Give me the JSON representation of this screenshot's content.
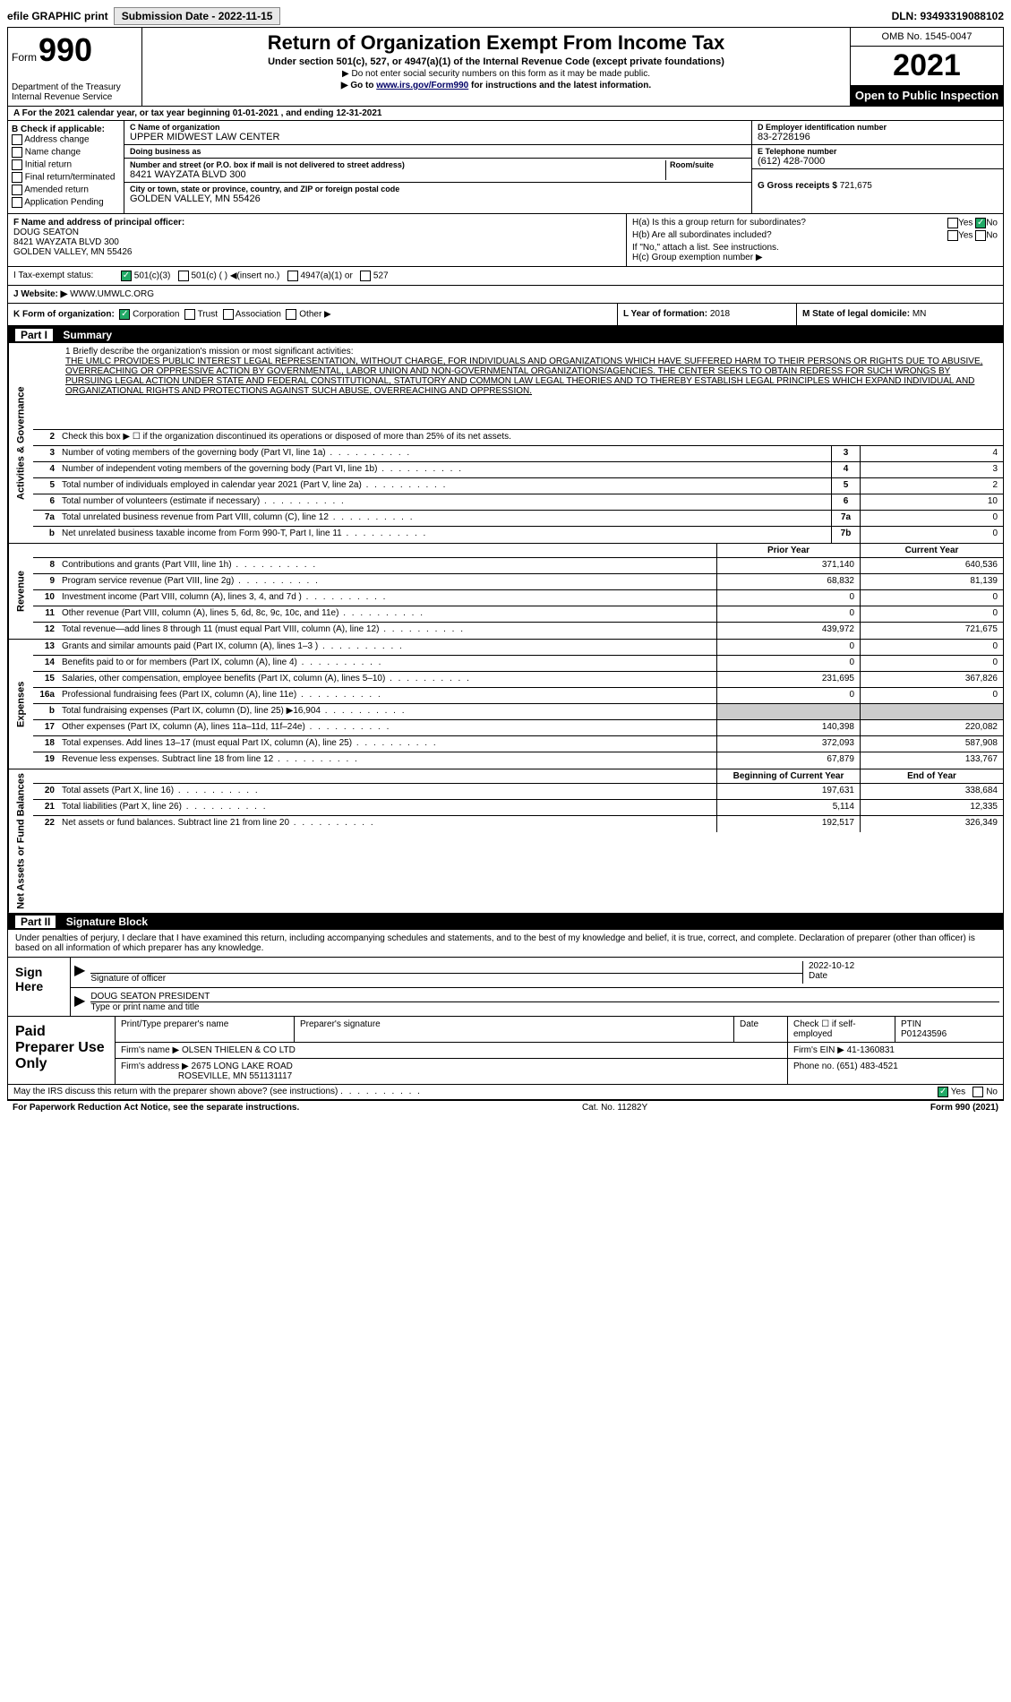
{
  "topbar": {
    "efile": "efile GRAPHIC print",
    "submission_label": "Submission Date - 2022-11-15",
    "dln_label": "DLN: 93493319088102"
  },
  "header": {
    "form_word": "Form",
    "form_number": "990",
    "dept": "Department of the Treasury Internal Revenue Service",
    "title": "Return of Organization Exempt From Income Tax",
    "subtitle": "Under section 501(c), 527, or 4947(a)(1) of the Internal Revenue Code (except private foundations)",
    "note1": "▶ Do not enter social security numbers on this form as it may be made public.",
    "note2_pre": "▶ Go to ",
    "note2_link": "www.irs.gov/Form990",
    "note2_post": " for instructions and the latest information.",
    "omb": "OMB No. 1545-0047",
    "year": "2021",
    "open_pub": "Open to Public Inspection"
  },
  "rowA": "A For the 2021 calendar year, or tax year beginning 01-01-2021   , and ending 12-31-2021",
  "sectionB": {
    "label": "B Check if applicable:",
    "items": [
      "Address change",
      "Name change",
      "Initial return",
      "Final return/terminated",
      "Amended return",
      "Application Pending"
    ]
  },
  "sectionC": {
    "name_lbl": "C Name of organization",
    "name": "UPPER MIDWEST LAW CENTER",
    "dba_lbl": "Doing business as",
    "dba": "",
    "addr_lbl": "Number and street (or P.O. box if mail is not delivered to street address)",
    "room_lbl": "Room/suite",
    "addr": "8421 WAYZATA BLVD 300",
    "city_lbl": "City or town, state or province, country, and ZIP or foreign postal code",
    "city": "GOLDEN VALLEY, MN  55426"
  },
  "sectionD": {
    "lbl": "D Employer identification number",
    "val": "83-2728196"
  },
  "sectionE": {
    "lbl": "E Telephone number",
    "val": "(612) 428-7000"
  },
  "sectionG": {
    "lbl": "G Gross receipts $",
    "val": "721,675"
  },
  "sectionF": {
    "lbl": "F Name and address of principal officer:",
    "name": "DOUG SEATON",
    "addr1": "8421 WAYZATA BLVD 300",
    "addr2": "GOLDEN VALLEY, MN  55426"
  },
  "sectionH": {
    "a_lbl": "H(a)  Is this a group return for subordinates?",
    "a_yes": "Yes",
    "a_no": "No",
    "b_lbl": "H(b)  Are all subordinates included?",
    "b_yes": "Yes",
    "b_no": "No",
    "b_note": "If \"No,\" attach a list. See instructions.",
    "c_lbl": "H(c)  Group exemption number ▶"
  },
  "sectionI": {
    "lbl": "I  Tax-exempt status:",
    "opts": [
      "501(c)(3)",
      "501(c) (  ) ◀(insert no.)",
      "4947(a)(1) or",
      "527"
    ]
  },
  "sectionJ": {
    "lbl": "J  Website: ▶",
    "val": "WWW.UMWLC.ORG"
  },
  "sectionK": {
    "lbl": "K Form of organization:",
    "opts": [
      "Corporation",
      "Trust",
      "Association",
      "Other ▶"
    ]
  },
  "sectionL": {
    "lbl": "L Year of formation:",
    "val": "2018"
  },
  "sectionM": {
    "lbl": "M State of legal domicile:",
    "val": "MN"
  },
  "part1": {
    "hdr": "Summary",
    "mission_lbl": "1   Briefly describe the organization's mission or most significant activities:",
    "mission": "THE UMLC PROVIDES PUBLIC INTEREST LEGAL REPRESENTATION, WITHOUT CHARGE, FOR INDIVIDUALS AND ORGANIZATIONS WHICH HAVE SUFFERED HARM TO THEIR PERSONS OR RIGHTS DUE TO ABUSIVE, OVERREACHING OR OPPRESSIVE ACTION BY GOVERNMENTAL, LABOR UNION AND NON-GOVERNMENTAL ORGANIZATIONS/AGENCIES. THE CENTER SEEKS TO OBTAIN REDRESS FOR SUCH WRONGS BY PURSUING LEGAL ACTION UNDER STATE AND FEDERAL CONSTITUTIONAL, STATUTORY AND COMMON LAW LEGAL THEORIES AND TO THEREBY ESTABLISH LEGAL PRINCIPLES WHICH EXPAND INDIVIDUAL AND ORGANIZATIONAL RIGHTS AND PROTECTIONS AGAINST SUCH ABUSE, OVERREACHING AND OPPRESSION.",
    "line2": "Check this box ▶ ☐ if the organization discontinued its operations or disposed of more than 25% of its net assets.",
    "side_gov": "Activities & Governance",
    "side_rev": "Revenue",
    "side_exp": "Expenses",
    "side_net": "Net Assets or Fund Balances",
    "prior_hdr": "Prior Year",
    "curr_hdr": "Current Year",
    "boy_hdr": "Beginning of Current Year",
    "eoy_hdr": "End of Year",
    "gov_lines": [
      {
        "n": "3",
        "d": "Number of voting members of the governing body (Part VI, line 1a)",
        "box": "3",
        "v": "4"
      },
      {
        "n": "4",
        "d": "Number of independent voting members of the governing body (Part VI, line 1b)",
        "box": "4",
        "v": "3"
      },
      {
        "n": "5",
        "d": "Total number of individuals employed in calendar year 2021 (Part V, line 2a)",
        "box": "5",
        "v": "2"
      },
      {
        "n": "6",
        "d": "Total number of volunteers (estimate if necessary)",
        "box": "6",
        "v": "10"
      },
      {
        "n": "7a",
        "d": "Total unrelated business revenue from Part VIII, column (C), line 12",
        "box": "7a",
        "v": "0"
      },
      {
        "n": "b",
        "d": "Net unrelated business taxable income from Form 990-T, Part I, line 11",
        "box": "7b",
        "v": "0"
      }
    ],
    "rev_lines": [
      {
        "n": "8",
        "d": "Contributions and grants (Part VIII, line 1h)",
        "p": "371,140",
        "c": "640,536"
      },
      {
        "n": "9",
        "d": "Program service revenue (Part VIII, line 2g)",
        "p": "68,832",
        "c": "81,139"
      },
      {
        "n": "10",
        "d": "Investment income (Part VIII, column (A), lines 3, 4, and 7d )",
        "p": "0",
        "c": "0"
      },
      {
        "n": "11",
        "d": "Other revenue (Part VIII, column (A), lines 5, 6d, 8c, 9c, 10c, and 11e)",
        "p": "0",
        "c": "0"
      },
      {
        "n": "12",
        "d": "Total revenue—add lines 8 through 11 (must equal Part VIII, column (A), line 12)",
        "p": "439,972",
        "c": "721,675"
      }
    ],
    "exp_lines": [
      {
        "n": "13",
        "d": "Grants and similar amounts paid (Part IX, column (A), lines 1–3 )",
        "p": "0",
        "c": "0"
      },
      {
        "n": "14",
        "d": "Benefits paid to or for members (Part IX, column (A), line 4)",
        "p": "0",
        "c": "0"
      },
      {
        "n": "15",
        "d": "Salaries, other compensation, employee benefits (Part IX, column (A), lines 5–10)",
        "p": "231,695",
        "c": "367,826"
      },
      {
        "n": "16a",
        "d": "Professional fundraising fees (Part IX, column (A), line 11e)",
        "p": "0",
        "c": "0"
      },
      {
        "n": "b",
        "d": "Total fundraising expenses (Part IX, column (D), line 25) ▶16,904",
        "p": "",
        "c": "",
        "shade": true
      },
      {
        "n": "17",
        "d": "Other expenses (Part IX, column (A), lines 11a–11d, 11f–24e)",
        "p": "140,398",
        "c": "220,082"
      },
      {
        "n": "18",
        "d": "Total expenses. Add lines 13–17 (must equal Part IX, column (A), line 25)",
        "p": "372,093",
        "c": "587,908"
      },
      {
        "n": "19",
        "d": "Revenue less expenses. Subtract line 18 from line 12",
        "p": "67,879",
        "c": "133,767"
      }
    ],
    "net_lines": [
      {
        "n": "20",
        "d": "Total assets (Part X, line 16)",
        "p": "197,631",
        "c": "338,684"
      },
      {
        "n": "21",
        "d": "Total liabilities (Part X, line 26)",
        "p": "5,114",
        "c": "12,335"
      },
      {
        "n": "22",
        "d": "Net assets or fund balances. Subtract line 21 from line 20",
        "p": "192,517",
        "c": "326,349"
      }
    ]
  },
  "part2": {
    "hdr": "Signature Block",
    "intro": "Under penalties of perjury, I declare that I have examined this return, including accompanying schedules and statements, and to the best of my knowledge and belief, it is true, correct, and complete. Declaration of preparer (other than officer) is based on all information of which preparer has any knowledge.",
    "sign_here": "Sign Here",
    "sig_lbl": "Signature of officer",
    "date_lbl": "Date",
    "date_val": "2022-10-12",
    "name_lbl": "Type or print name and title",
    "name_val": "DOUG SEATON  PRESIDENT",
    "paid_hdr": "Paid Preparer Use Only",
    "prep_name_lbl": "Print/Type preparer's name",
    "prep_sig_lbl": "Preparer's signature",
    "prep_date_lbl": "Date",
    "self_emp_lbl": "Check ☐ if self-employed",
    "ptin_lbl": "PTIN",
    "ptin_val": "P01243596",
    "firm_name_lbl": "Firm's name    ▶",
    "firm_name": "OLSEN THIELEN & CO LTD",
    "firm_ein_lbl": "Firm's EIN ▶",
    "firm_ein": "41-1360831",
    "firm_addr_lbl": "Firm's address ▶",
    "firm_addr1": "2675 LONG LAKE ROAD",
    "firm_addr2": "ROSEVILLE, MN  551131117",
    "phone_lbl": "Phone no.",
    "phone": "(651) 483-4521",
    "discuss": "May the IRS discuss this return with the preparer shown above? (see instructions)",
    "yes": "Yes",
    "no": "No"
  },
  "footer": {
    "pra": "For Paperwork Reduction Act Notice, see the separate instructions.",
    "cat": "Cat. No. 11282Y",
    "form": "Form 990 (2021)"
  }
}
